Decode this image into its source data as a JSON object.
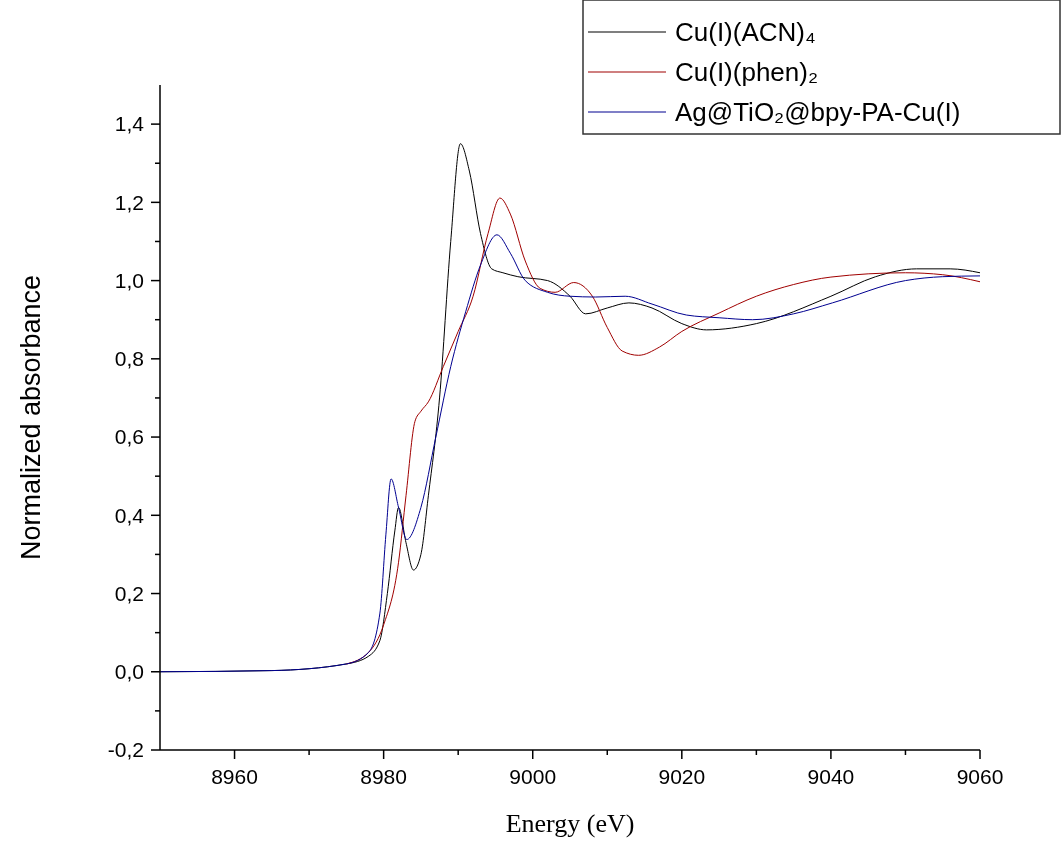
{
  "chart_data": {
    "type": "line",
    "xlabel": "Energy (eV)",
    "ylabel": "Normalized absorbance",
    "xlim": [
      8950,
      9060
    ],
    "ylim": [
      -0.2,
      1.5
    ],
    "xticks": [
      {
        "value": 8960,
        "label": "8960"
      },
      {
        "value": 8970,
        "label": null
      },
      {
        "value": 8980,
        "label": "8980"
      },
      {
        "value": 8990,
        "label": null
      },
      {
        "value": 9000,
        "label": "9000"
      },
      {
        "value": 9010,
        "label": null
      },
      {
        "value": 9020,
        "label": "9020"
      },
      {
        "value": 9030,
        "label": null
      },
      {
        "value": 9040,
        "label": "9040"
      },
      {
        "value": 9050,
        "label": null
      },
      {
        "value": 9060,
        "label": "9060"
      }
    ],
    "yticks": [
      {
        "value": -0.2,
        "label": "-0,2"
      },
      {
        "value": -0.1,
        "label": null
      },
      {
        "value": 0,
        "label": "0,0"
      },
      {
        "value": 0.1,
        "label": null
      },
      {
        "value": 0.2,
        "label": "0,2"
      },
      {
        "value": 0.3,
        "label": null
      },
      {
        "value": 0.4,
        "label": "0,4"
      },
      {
        "value": 0.5,
        "label": null
      },
      {
        "value": 0.6,
        "label": "0,6"
      },
      {
        "value": 0.7,
        "label": null
      },
      {
        "value": 0.8,
        "label": "0,8"
      },
      {
        "value": 0.9,
        "label": null
      },
      {
        "value": 1.0,
        "label": "1,0"
      },
      {
        "value": 1.1,
        "label": null
      },
      {
        "value": 1.2,
        "label": "1,2"
      },
      {
        "value": 1.3,
        "label": null
      },
      {
        "value": 1.4,
        "label": "1,4"
      }
    ],
    "grid": false,
    "legend": "top right",
    "marker": "none",
    "line_style": "solid",
    "series": [
      {
        "name": "Cu(I)(ACN)₄",
        "color": "#000000",
        "x": [
          8950,
          8965,
          8975,
          8978,
          8979.5,
          8980.5,
          8981.5,
          8982,
          8983,
          8984,
          8985,
          8986,
          8987.5,
          8989,
          8990.3,
          8991.5,
          8993,
          8994.5,
          8996,
          8998,
          9002,
          9005,
          9007.1,
          9010,
          9012.9,
          9016,
          9020,
          9023.3,
          9030,
          9040,
          9046,
          9051.5,
          9056,
          9060
        ],
        "values": [
          0,
          0.003,
          0.02,
          0.04,
          0.08,
          0.2,
          0.36,
          0.42,
          0.33,
          0.26,
          0.3,
          0.45,
          0.7,
          1.1,
          1.35,
          1.28,
          1.12,
          1.03,
          1.02,
          1.01,
          1.0,
          0.96,
          0.915,
          0.93,
          0.943,
          0.93,
          0.89,
          0.874,
          0.89,
          0.96,
          1.01,
          1.03,
          1.03,
          1.02
        ]
      },
      {
        "name": "Cu(I)(phen)₂",
        "color": "#a00000",
        "x": [
          8975,
          8978,
          8980,
          8982,
          8983,
          8984.2,
          8985,
          8986,
          8988,
          8990,
          8992,
          8994,
          8995.6,
          8997,
          8999,
          9001,
          9003,
          9005.5,
          9008,
          9010,
          9012,
          9014.2,
          9017,
          9020,
          9025,
          9030,
          9035,
          9040,
          9050,
          9055,
          9060
        ],
        "values": [
          0.02,
          0.05,
          0.12,
          0.28,
          0.45,
          0.64,
          0.666,
          0.69,
          0.78,
          0.87,
          0.96,
          1.12,
          1.211,
          1.17,
          1.05,
          0.98,
          0.97,
          0.995,
          0.96,
          0.88,
          0.82,
          0.809,
          0.83,
          0.87,
          0.917,
          0.96,
          0.99,
          1.009,
          1.02,
          1.015,
          0.997
        ]
      },
      {
        "name": "Ag@TiO₂@bpy-PA-Cu(I)",
        "color": "#000090",
        "x": [
          8950,
          8965,
          8975,
          8978,
          8979.5,
          8980.3,
          8981,
          8982,
          8983.1,
          8985,
          8987,
          8989,
          8991,
          8993,
          8995.2,
          8997,
          8999,
          9002,
          9005,
          9008.4,
          9012.4,
          9016,
          9020.6,
          9025,
          9029.5,
          9035,
          9040.2,
          9050,
          9055,
          9060
        ],
        "values": [
          0,
          0.003,
          0.02,
          0.05,
          0.15,
          0.35,
          0.493,
          0.42,
          0.338,
          0.42,
          0.6,
          0.78,
          0.92,
          1.04,
          1.117,
          1.07,
          1.0,
          0.97,
          0.96,
          0.958,
          0.96,
          0.94,
          0.912,
          0.905,
          0.9,
          0.915,
          0.943,
          1.0,
          1.01,
          1.012
        ]
      }
    ]
  }
}
